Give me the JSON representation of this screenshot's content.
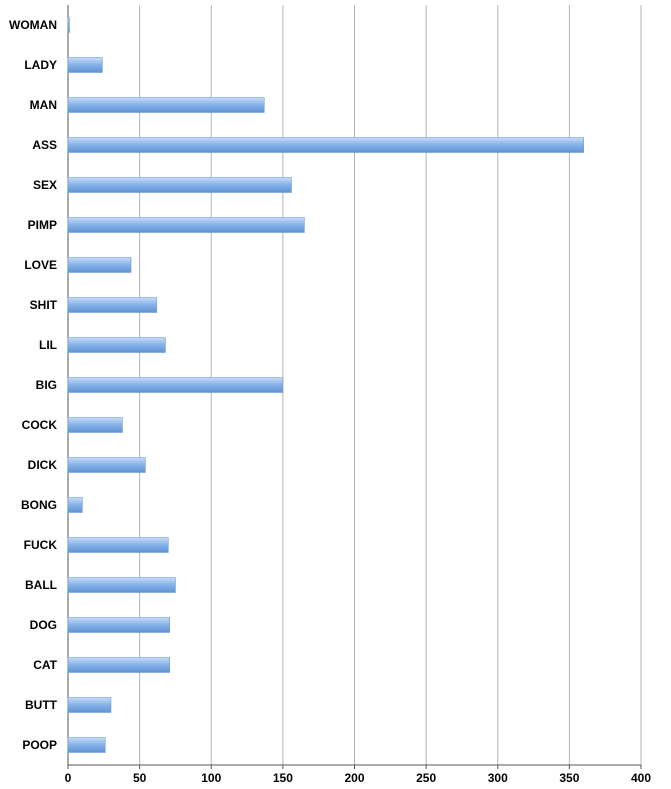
{
  "chart_data": {
    "type": "bar",
    "orientation": "horizontal",
    "categories": [
      "WOMAN",
      "LADY",
      "MAN",
      "ASS",
      "SEX",
      "PIMP",
      "LOVE",
      "SHIT",
      "LIL",
      "BIG",
      "COCK",
      "DICK",
      "BONG",
      "FUCK",
      "BALL",
      "DOG",
      "CAT",
      "BUTT",
      "POOP"
    ],
    "values": [
      1,
      24,
      137,
      360,
      156,
      165,
      44,
      62,
      68,
      150,
      38,
      54,
      10,
      70,
      75,
      71,
      71,
      30,
      26
    ],
    "xlim": [
      0,
      400
    ],
    "xticks": [
      "0",
      "50",
      "100",
      "150",
      "200",
      "250",
      "300",
      "350",
      "400"
    ],
    "title": "",
    "xlabel": "",
    "ylabel": "",
    "grid": "vertical",
    "legend": "none",
    "bar_color": "#8ab4e8"
  }
}
